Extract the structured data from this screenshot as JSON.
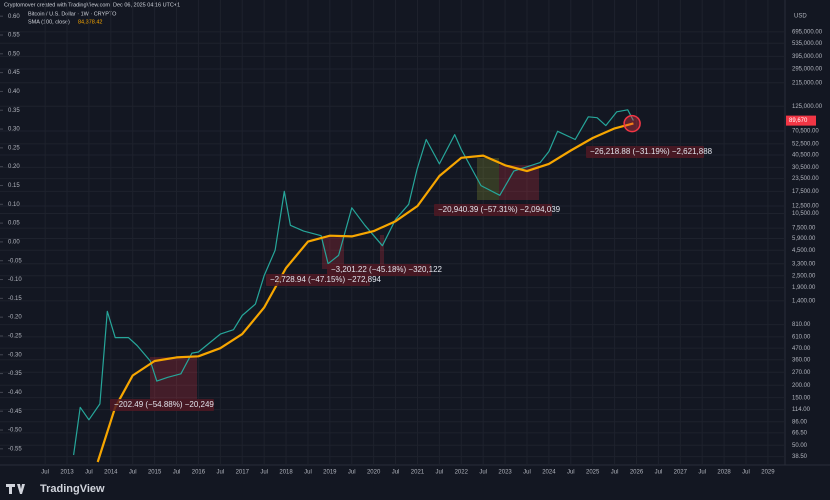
{
  "chart_data": {
    "type": "line",
    "credit": "Cryptomover created with TradingView.com, Dec 06, 2025 04:16 UTC+1",
    "title": "Bitcoin / U.S. Dollar · 1W · CRYPTO",
    "sma_label": "SMA (100, close)",
    "sma_value": {
      "value": 84378.42,
      "label": "84,378.42"
    },
    "price_tag": {
      "value": 89670,
      "label": "89,670"
    },
    "currency": "USD",
    "footer": "TradingView",
    "log_scale": true,
    "xlim": [
      2011.47,
      2029.39
    ],
    "ylim": [
      34,
      1450000
    ],
    "y2lim": [
      -0.585,
      0.643
    ],
    "xticks": [
      {
        "value": 2012.5,
        "label": "Jul"
      },
      2013,
      {
        "value": 2013.5,
        "label": "Jul"
      },
      2014,
      {
        "value": 2014.5,
        "label": "Jul"
      },
      2015,
      {
        "value": 2015.5,
        "label": "Jul"
      },
      2016,
      {
        "value": 2016.5,
        "label": "Jul"
      },
      2017,
      {
        "value": 2017.5,
        "label": "Jul"
      },
      2018,
      {
        "value": 2018.5,
        "label": "Jul"
      },
      2019,
      {
        "value": 2019.5,
        "label": "Jul"
      },
      2020,
      {
        "value": 2020.5,
        "label": "Jul"
      },
      2021,
      {
        "value": 2021.5,
        "label": "Jul"
      },
      2022,
      {
        "value": 2022.5,
        "label": "Jul"
      },
      2023,
      {
        "value": 2023.5,
        "label": "Jul"
      },
      2024,
      {
        "value": 2024.5,
        "label": "Jul"
      },
      2025,
      {
        "value": 2025.5,
        "label": "Jul"
      },
      2026,
      {
        "value": 2026.5,
        "label": "Jul"
      },
      2027,
      {
        "value": 2027.5,
        "label": "Jul"
      },
      2028,
      {
        "value": 2028.5,
        "label": "Jul"
      },
      2029
    ],
    "yticks": [
      {
        "value": 695000,
        "label": "695,000.00"
      },
      {
        "value": 535000,
        "label": "535,000.00"
      },
      {
        "value": 395000,
        "label": "395,000.00"
      },
      {
        "value": 295000,
        "label": "295,000.00"
      },
      {
        "value": 215000,
        "label": "215,000.00"
      },
      {
        "value": 125000,
        "label": "125,000.00"
      },
      {
        "value": 70500,
        "label": "70,500.00"
      },
      {
        "value": 52500,
        "label": "52,500.00"
      },
      {
        "value": 40500,
        "label": "40,500.00"
      },
      {
        "value": 30500,
        "label": "30,500.00"
      },
      {
        "value": 23500,
        "label": "23,500.00"
      },
      {
        "value": 17500,
        "label": "17,500.00"
      },
      {
        "value": 12500,
        "label": "12,500.00"
      },
      {
        "value": 10500,
        "label": "10,500.00"
      },
      {
        "value": 7500,
        "label": "7,500.00"
      },
      {
        "value": 5900,
        "label": "5,900.00"
      },
      {
        "value": 4500,
        "label": "4,500.00"
      },
      {
        "value": 3300,
        "label": "3,300.00"
      },
      {
        "value": 2500,
        "label": "2,500.00"
      },
      {
        "value": 1900,
        "label": "1,900.00"
      },
      {
        "value": 1400,
        "label": "1,400.00"
      },
      {
        "value": 810,
        "label": "810.00"
      },
      {
        "value": 610,
        "label": "610.00"
      },
      {
        "value": 470,
        "label": "470.00"
      },
      {
        "value": 360,
        "label": "360.00"
      },
      {
        "value": 270,
        "label": "270.00"
      },
      {
        "value": 200,
        "label": "200.00"
      },
      {
        "value": 150,
        "label": "150.00"
      },
      {
        "value": 114,
        "label": "114.00"
      },
      {
        "value": 86,
        "label": "86.00"
      },
      {
        "value": 66.5,
        "label": "66.50"
      },
      {
        "value": 50,
        "label": "50.00"
      },
      {
        "value": 38.5,
        "label": "38.50"
      }
    ],
    "y2ticks": [
      {
        "value": 0.6,
        "label": "0.60"
      },
      {
        "value": 0.55,
        "label": "0.55"
      },
      {
        "value": 0.5,
        "label": "0.50"
      },
      {
        "value": 0.45,
        "label": "0.45"
      },
      {
        "value": 0.4,
        "label": "0.40"
      },
      {
        "value": 0.35,
        "label": "0.35"
      },
      {
        "value": 0.3,
        "label": "0.30"
      },
      {
        "value": 0.25,
        "label": "0.25"
      },
      {
        "value": 0.2,
        "label": "0.20"
      },
      {
        "value": 0.15,
        "label": "0.15"
      },
      {
        "value": 0.1,
        "label": "0.10"
      },
      {
        "value": 0.05,
        "label": "0.05"
      },
      {
        "value": 0,
        "label": "0.00"
      },
      {
        "value": -0.05,
        "label": "-0.05"
      },
      {
        "value": -0.1,
        "label": "-0.10"
      },
      {
        "value": -0.15,
        "label": "-0.15"
      },
      {
        "value": -0.2,
        "label": "-0.20"
      },
      {
        "value": -0.25,
        "label": "-0.25"
      },
      {
        "value": -0.3,
        "label": "-0.30"
      },
      {
        "value": -0.35,
        "label": "-0.35"
      },
      {
        "value": -0.4,
        "label": "-0.40"
      },
      {
        "value": -0.45,
        "label": "-0.45"
      },
      {
        "value": -0.5,
        "label": "-0.50"
      },
      {
        "value": -0.55,
        "label": "-0.55"
      }
    ],
    "series": [
      {
        "name": "Bitcoin / U.S. Dollar",
        "color": "#26a69a",
        "x": [
          2013.15,
          2013.3,
          2013.5,
          2013.75,
          2013.92,
          2014.1,
          2014.4,
          2014.6,
          2014.9,
          2015.05,
          2015.3,
          2015.6,
          2015.85,
          2016.0,
          2016.5,
          2016.8,
          2017.0,
          2017.3,
          2017.5,
          2017.75,
          2017.96,
          2018.1,
          2018.4,
          2018.8,
          2018.96,
          2019.2,
          2019.5,
          2019.8,
          2020.2,
          2020.5,
          2020.8,
          2020.99,
          2021.2,
          2021.5,
          2021.85,
          2022.0,
          2022.45,
          2022.88,
          2023.2,
          2023.8,
          2024.0,
          2024.2,
          2024.6,
          2024.9,
          2025.1,
          2025.3,
          2025.55,
          2025.8,
          2025.93
        ],
        "values": [
          40,
          120,
          90,
          130,
          1100,
          600,
          600,
          500,
          350,
          220,
          240,
          260,
          420,
          430,
          650,
          720,
          1000,
          1300,
          2500,
          4500,
          17500,
          8000,
          7000,
          6300,
          3300,
          4000,
          12000,
          8000,
          5000,
          9200,
          13000,
          29000,
          58000,
          33000,
          65000,
          46000,
          20000,
          16000,
          28000,
          34000,
          44000,
          70000,
          58000,
          98000,
          96000,
          80000,
          110000,
          115000,
          90000
        ]
      },
      {
        "name": "SMA (100, close)",
        "color": "#f7a600",
        "x": [
          2013.7,
          2014.1,
          2014.5,
          2015.0,
          2015.5,
          2016.0,
          2016.5,
          2017.0,
          2017.5,
          2018.0,
          2018.5,
          2019.0,
          2019.5,
          2020.0,
          2020.5,
          2021.0,
          2021.5,
          2022.0,
          2022.5,
          2023.0,
          2023.5,
          2024.0,
          2024.5,
          2025.0,
          2025.5,
          2025.93
        ],
        "values": [
          34,
          120,
          250,
          350,
          380,
          390,
          470,
          650,
          1200,
          3000,
          5500,
          6300,
          6200,
          7000,
          8800,
          12500,
          25000,
          38000,
          40000,
          32000,
          28000,
          33000,
          45000,
          60000,
          75000,
          84000
        ]
      }
    ],
    "annotations": [
      "−202.49 (−54.88%) −20,249",
      "−2,728.94 (−47.15%) −272,894",
      "−3,201.22 (−45.18%) −320,122",
      "−20,940.39 (−57.31%) −2,094,039",
      "−26,218.88 (−31.19%) −2,621,888"
    ]
  }
}
